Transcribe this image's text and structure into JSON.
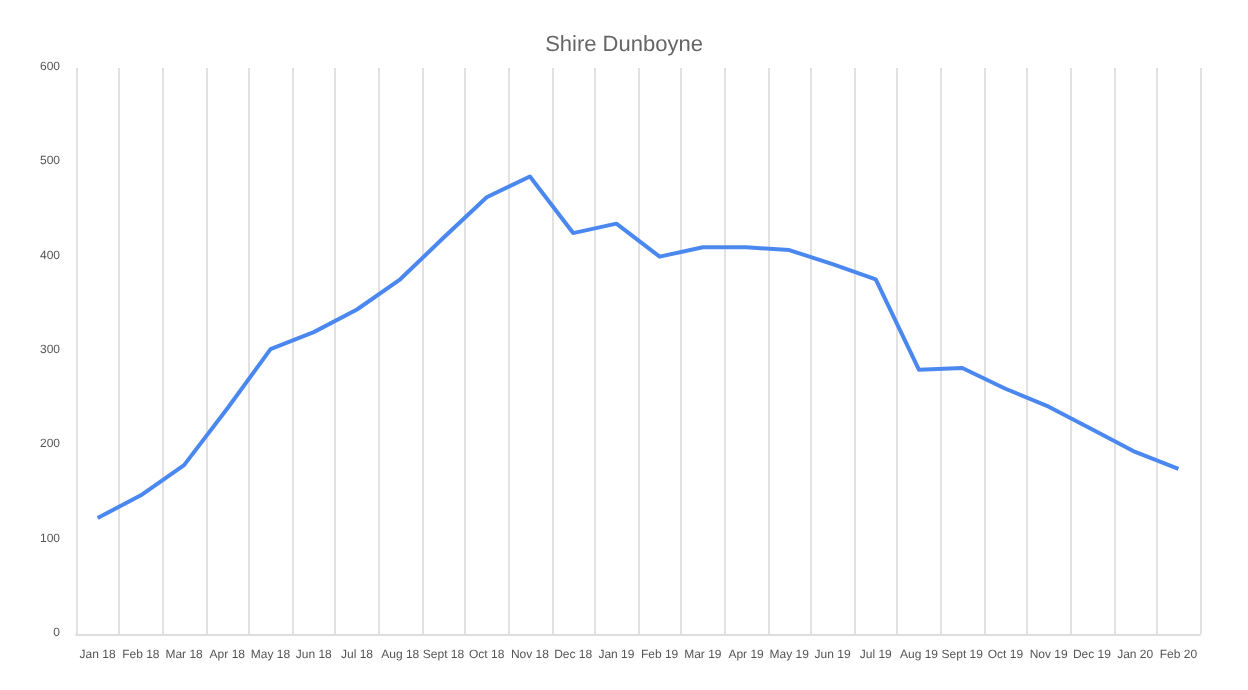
{
  "chart_data": {
    "type": "line",
    "title": "Shire Dunboyne",
    "categories": [
      "Jan 18",
      "Feb 18",
      "Mar 18",
      "Apr 18",
      "May 18",
      "Jun 18",
      "Jul 18",
      "Aug 18",
      "Sept 18",
      "Oct 18",
      "Nov 18",
      "Dec 18",
      "Jan 19",
      "Feb 19",
      "Mar 19",
      "Apr 19",
      "May 19",
      "Jun 19",
      "Jul 19",
      "Aug 19",
      "Sept 19",
      "Oct 19",
      "Nov 19",
      "Dec 19",
      "Jan 20",
      "Feb 20"
    ],
    "series": [
      {
        "color": "#4a88f0",
        "values": [
          123,
          147,
          179,
          239,
          302,
          320,
          344,
          376,
          420,
          463,
          485,
          425,
          435,
          400,
          410,
          410,
          407,
          392,
          376,
          280,
          282,
          260,
          241,
          217,
          193,
          175
        ]
      }
    ],
    "ylim": [
      0,
      600
    ],
    "yticks": [
      0,
      100,
      200,
      300,
      400,
      500,
      600
    ],
    "grid": "x",
    "marker": "none",
    "line_style": "solid"
  }
}
